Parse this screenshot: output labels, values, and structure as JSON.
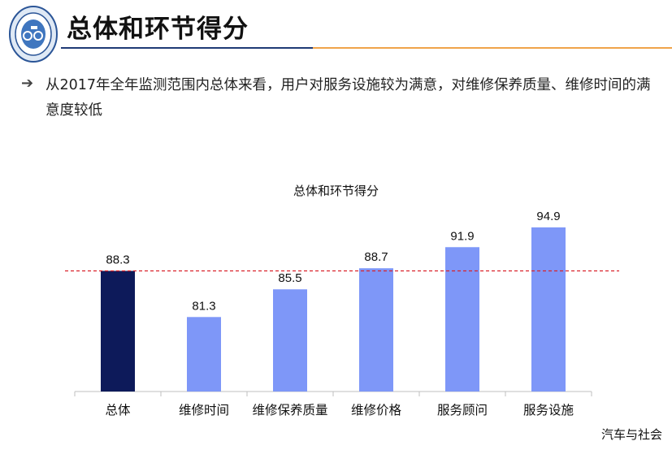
{
  "header": {
    "title": "总体和环节得分",
    "bullet_text": "从2017年全年监测范围内总体来看，用户对服务设施较为满意，对维修保养质量、维修时间的满意度较低"
  },
  "icons": {
    "bullet": "arrow-right-icon",
    "logo": "circular-seal-logo"
  },
  "colors": {
    "highlight_bar": "#0d1a5a",
    "bar": "#7e97f8",
    "reference_line": "#d9222a",
    "title_rule_left": "#1f3a75",
    "title_rule_right": "#f0a44a"
  },
  "chart_data": {
    "type": "bar",
    "title": "总体和环节得分",
    "categories": [
      "总体",
      "维修时间",
      "维修保养质量",
      "维修价格",
      "服务顾问",
      "服务设施"
    ],
    "values": [
      88.3,
      81.3,
      85.5,
      88.7,
      91.9,
      94.9
    ],
    "data_labels": [
      "88.3",
      "81.3",
      "85.5",
      "88.7",
      "91.9",
      "94.9"
    ],
    "highlight_category": "总体",
    "reference_line": {
      "value": 88.3,
      "style": "dashed"
    },
    "ylim": [
      70,
      96
    ],
    "xlabel": "",
    "ylabel": "",
    "grid": false,
    "legend": "none"
  },
  "watermark": "汽车与社会"
}
